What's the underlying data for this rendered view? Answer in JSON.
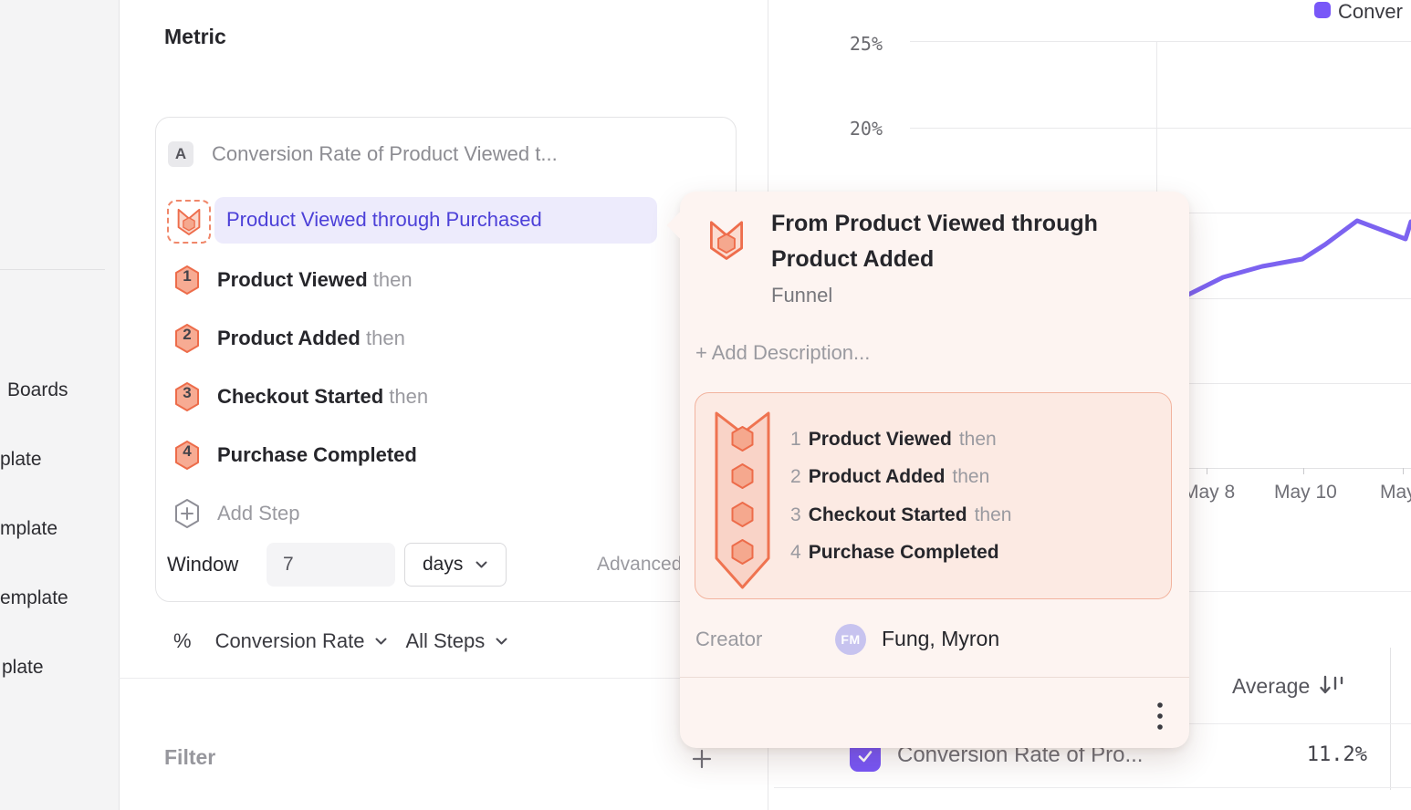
{
  "colors": {
    "accent": "#7857f8",
    "selected_text": "#4c40d8",
    "funnel_orange": "#ee6d4c",
    "line": "#7c63f0"
  },
  "sidebar": {
    "items": [
      {
        "label": "Boards"
      },
      {
        "label": "plate"
      },
      {
        "label": "mplate"
      },
      {
        "label": "emplate"
      },
      {
        "label": "plate"
      }
    ]
  },
  "metric": {
    "title": "Metric",
    "badge": "A",
    "name_truncated": "Conversion Rate of Product Viewed t...",
    "selected_event": "Product Viewed through Purchased",
    "add_step": "Add Step",
    "window": {
      "label": "Window",
      "value": "7",
      "unit": "days",
      "advanced": "Advanced"
    },
    "measure": {
      "symbol": "%",
      "type": "Conversion Rate",
      "steps": "All Steps"
    },
    "filter_title": "Filter"
  },
  "funnel": {
    "steps": [
      {
        "num": "1",
        "name": "Product Viewed",
        "connector": "then"
      },
      {
        "num": "2",
        "name": "Product Added",
        "connector": "then"
      },
      {
        "num": "3",
        "name": "Checkout Started",
        "connector": "then"
      },
      {
        "num": "4",
        "name": "Purchase Completed",
        "connector": ""
      }
    ]
  },
  "popover": {
    "title": "From Product Viewed through Product Added",
    "type": "Funnel",
    "add_description": "+ Add Description...",
    "creator_label": "Creator",
    "creator_initials": "FM",
    "creator_name": "Fung, Myron"
  },
  "chart": {
    "legend_label": "Conver",
    "y_ticks": [
      "25%",
      "20%"
    ],
    "x_ticks": [
      "May 8",
      "May 10",
      "May"
    ],
    "line_points": [
      [
        1296,
        326
      ],
      [
        1340,
        304
      ],
      [
        1383,
        292
      ],
      [
        1427,
        284
      ],
      [
        1452,
        268
      ],
      [
        1487,
        242
      ],
      [
        1540,
        262
      ],
      [
        1546,
        243
      ]
    ]
  },
  "table": {
    "header_label": "Average",
    "rows": [
      {
        "name": "Conversion Rate of Pro...",
        "average": "11.2%"
      }
    ]
  }
}
